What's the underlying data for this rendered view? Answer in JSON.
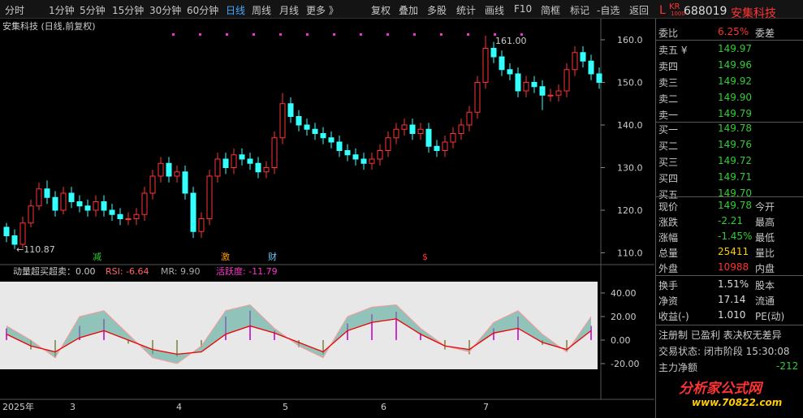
{
  "toolbar": {
    "left": [
      "分时",
      "1分钟",
      "5分钟",
      "15分钟",
      "30分钟",
      "60分钟",
      "日线",
      "周线",
      "月线",
      "更多 》"
    ],
    "active": 6,
    "right": [
      "复权",
      "叠加",
      "多股",
      "统计",
      "画线",
      "F10",
      "简框",
      "标记",
      "-自选",
      "返回"
    ]
  },
  "quote": {
    "prefix": "L",
    "badge": "KR",
    "badge_sub": "1000",
    "code": "688019",
    "name": "安集科技"
  },
  "chart": {
    "title": "安集科技 (日线,前复权)",
    "yticks": [
      110,
      120,
      130,
      140,
      150,
      160
    ],
    "ytick_labels": [
      "110.0",
      "120.0",
      "130.0",
      "140.0",
      "150.0",
      "160.0"
    ],
    "high_label": "161.00",
    "low_label": "←110.87",
    "markers": [
      {
        "text": "减",
        "color": "#3c3"
      },
      {
        "text": "激",
        "color": "#f90"
      },
      {
        "text": "财",
        "color": "#6cf"
      },
      {
        "text": "$",
        "color": "#f33"
      }
    ],
    "xlabels": [
      "2025年",
      "3",
      "4",
      "5",
      "6",
      "7"
    ],
    "candles": [
      [
        116,
        117,
        112.5,
        114
      ],
      [
        114,
        115.5,
        110.9,
        112
      ],
      [
        112,
        118.5,
        111,
        117
      ],
      [
        117,
        122.5,
        116,
        121
      ],
      [
        121,
        126.5,
        120,
        125
      ],
      [
        125,
        127,
        121.5,
        123
      ],
      [
        123,
        124.5,
        118.5,
        120
      ],
      [
        120,
        125.5,
        119,
        124
      ],
      [
        124,
        125.5,
        120.5,
        122
      ],
      [
        122,
        123.5,
        119.5,
        121
      ],
      [
        121,
        122.5,
        118.5,
        120
      ],
      [
        120,
        123.5,
        118.5,
        122
      ],
      [
        122,
        123.5,
        118.5,
        120
      ],
      [
        120,
        121.5,
        117.5,
        119
      ],
      [
        119,
        120.5,
        116.5,
        118
      ],
      [
        118,
        119.5,
        116.5,
        118
      ],
      [
        118,
        120.5,
        116.5,
        119
      ],
      [
        119,
        125.5,
        117.5,
        124
      ],
      [
        124,
        129.5,
        122.5,
        128
      ],
      [
        128,
        132.5,
        126.5,
        131
      ],
      [
        131,
        132.5,
        126.5,
        128
      ],
      [
        128,
        130.5,
        126.5,
        129
      ],
      [
        129,
        130.5,
        122.5,
        124
      ],
      [
        124,
        125.5,
        113.5,
        115
      ],
      [
        115,
        119.5,
        113.5,
        118
      ],
      [
        118,
        129.5,
        116.5,
        128
      ],
      [
        128,
        133.5,
        126.5,
        132
      ],
      [
        132,
        133.5,
        128.5,
        130
      ],
      [
        130,
        134.5,
        128.5,
        133
      ],
      [
        133,
        134.5,
        130.5,
        132
      ],
      [
        132,
        133.5,
        129.5,
        131
      ],
      [
        131,
        132.5,
        127.5,
        129
      ],
      [
        129,
        131.5,
        127.5,
        130
      ],
      [
        130,
        138.5,
        128.5,
        137
      ],
      [
        137,
        147.5,
        135.5,
        145
      ],
      [
        145,
        146.5,
        140.5,
        142
      ],
      [
        142,
        143.5,
        138.5,
        140
      ],
      [
        140,
        141.5,
        137.5,
        139
      ],
      [
        139,
        140.5,
        136.5,
        138
      ],
      [
        138,
        139.5,
        135.5,
        137
      ],
      [
        137,
        138.5,
        134.5,
        136
      ],
      [
        136,
        137.5,
        132.5,
        134
      ],
      [
        134,
        135.5,
        131.5,
        133
      ],
      [
        133,
        134.5,
        130.5,
        132
      ],
      [
        132,
        133.5,
        129.5,
        131
      ],
      [
        131,
        133.5,
        129.5,
        132
      ],
      [
        132,
        135.5,
        130.5,
        134
      ],
      [
        134,
        138.5,
        132.5,
        137
      ],
      [
        137,
        140.5,
        135.5,
        139
      ],
      [
        139,
        141.5,
        137.5,
        140
      ],
      [
        140,
        141.5,
        136.5,
        138
      ],
      [
        138,
        140.5,
        136.5,
        139
      ],
      [
        139,
        140.5,
        133.5,
        135
      ],
      [
        135,
        136.5,
        132.5,
        134
      ],
      [
        134,
        137.5,
        132.5,
        136
      ],
      [
        136,
        139.5,
        134.5,
        138
      ],
      [
        138,
        141.5,
        136.5,
        140
      ],
      [
        140,
        144.5,
        138.5,
        143
      ],
      [
        143,
        151.5,
        141.5,
        150
      ],
      [
        150,
        161,
        148.5,
        158
      ],
      [
        158,
        159.5,
        154.5,
        156
      ],
      [
        156,
        157.5,
        151.5,
        153
      ],
      [
        153,
        154.5,
        150.5,
        152
      ],
      [
        152,
        153.5,
        146.5,
        148
      ],
      [
        148,
        151.5,
        146.5,
        150
      ],
      [
        150,
        151.5,
        147.5,
        149
      ],
      [
        149,
        150.5,
        143.5,
        147
      ],
      [
        147,
        148.5,
        145.5,
        147
      ],
      [
        147,
        149.5,
        145.5,
        148
      ],
      [
        148,
        154.5,
        146.5,
        153
      ],
      [
        153,
        158.5,
        151.5,
        157
      ],
      [
        157,
        158.5,
        153.5,
        155
      ],
      [
        155,
        156.5,
        150.5,
        152
      ],
      [
        152,
        153.5,
        148.5,
        150
      ]
    ]
  },
  "indicator": {
    "header": [
      "动量超买超卖：0.00",
      "RSI: -6.64",
      "MR: 9.90",
      "活跃度: -11.79"
    ],
    "yticks": [
      -20,
      0,
      20,
      40
    ],
    "ytick_labels": [
      "-20.00",
      "0.00",
      "20.00",
      "40.00"
    ],
    "red": [
      5,
      -5,
      -10,
      2,
      8,
      0,
      -8,
      -12,
      -10,
      5,
      12,
      6,
      -2,
      -10,
      8,
      15,
      18,
      5,
      -5,
      -8,
      6,
      10,
      -2,
      -8,
      8
    ],
    "pink": [
      12,
      0,
      -15,
      20,
      25,
      5,
      -15,
      -20,
      -5,
      25,
      30,
      10,
      -5,
      -15,
      20,
      28,
      30,
      10,
      -5,
      -10,
      15,
      25,
      5,
      -10,
      20
    ],
    "bars": [
      10,
      -8,
      -15,
      12,
      18,
      -3,
      -12,
      -14,
      -6,
      20,
      25,
      8,
      -6,
      -12,
      14,
      22,
      24,
      6,
      -8,
      -12,
      10,
      20,
      -4,
      -10,
      12
    ]
  },
  "order_ratio": {
    "label": "委比",
    "value": "6.25%",
    "right": "委差"
  },
  "asks": [
    {
      "label": "卖五 ¥",
      "price": "149.97"
    },
    {
      "label": "卖四",
      "price": "149.96"
    },
    {
      "label": "卖三",
      "price": "149.92"
    },
    {
      "label": "卖二",
      "price": "149.90"
    },
    {
      "label": "卖一",
      "price": "149.79"
    }
  ],
  "bids": [
    {
      "label": "买一",
      "price": "149.78"
    },
    {
      "label": "买二",
      "price": "149.76"
    },
    {
      "label": "买三",
      "price": "149.72"
    },
    {
      "label": "买四",
      "price": "149.71"
    },
    {
      "label": "买五",
      "price": "149.70"
    }
  ],
  "stats": [
    {
      "label": "现价",
      "value": "149.78",
      "right": "今开",
      "color": "#3c3"
    },
    {
      "label": "涨跌",
      "value": "-2.21",
      "right": "最高",
      "color": "#3c3"
    },
    {
      "label": "涨幅",
      "value": "-1.45%",
      "right": "最低",
      "color": "#3c3"
    },
    {
      "label": "总量",
      "value": "25411",
      "right": "量比",
      "color": "#fc0"
    },
    {
      "label": "外盘",
      "value": "10988",
      "right": "内盘",
      "color": "#f33"
    }
  ],
  "stats2": [
    {
      "label": "换手",
      "value": "1.51%",
      "right": "股本"
    },
    {
      "label": "净资",
      "value": "17.14",
      "right": "流通"
    },
    {
      "label": "收益(-)",
      "value": "1.010",
      "right": "PE(动)"
    }
  ],
  "tags": "注册制 已盈利 表决权无差异",
  "status": "交易状态: 闭市阶段 15:30:08",
  "main_flow": {
    "label": "主力净额",
    "value": "-212"
  },
  "watermark": {
    "title": "分析家公式网",
    "url": "www.70822.com"
  }
}
